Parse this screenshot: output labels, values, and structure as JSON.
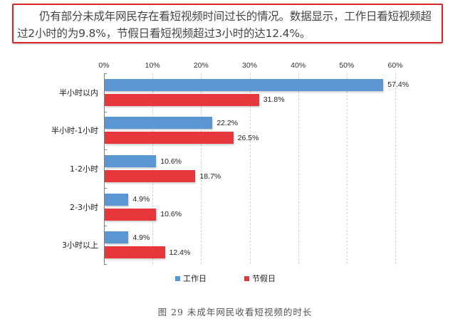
{
  "note": {
    "text": "仍有部分未成年网民存在看短视频时间过长的情况。数据显示，工作日看短视频超过2小时的为9.8%，节假日看短视频超过3小时的达12.4%。",
    "border_color": "#d9262b"
  },
  "chart_data": {
    "type": "bar",
    "orientation": "horizontal",
    "title": "图 29 未成年网民收看短视频的时长",
    "xlabel": "",
    "ylabel": "",
    "xlim": [
      0,
      60
    ],
    "x_ticks": [
      "0%",
      "10%",
      "20%",
      "30%",
      "40%",
      "50%",
      "60%"
    ],
    "grid": true,
    "legend_position": "bottom",
    "categories": [
      "半小时以内",
      "半小时-1小时",
      "1-2小时",
      "2-3小时",
      "3小时以上"
    ],
    "series": [
      {
        "name": "工作日",
        "color": "#5a96d2",
        "values": [
          57.4,
          22.2,
          10.6,
          4.9,
          4.9
        ],
        "labels": [
          "57.4%",
          "22.2%",
          "10.6%",
          "4.9%",
          "4.9%"
        ]
      },
      {
        "name": "节假日",
        "color": "#e8363d",
        "values": [
          31.8,
          26.5,
          18.7,
          10.6,
          12.4
        ],
        "labels": [
          "31.8%",
          "26.5%",
          "18.7%",
          "10.6%",
          "12.4%"
        ]
      }
    ]
  },
  "caption": "图 29 未成年网民收看短视频的时长"
}
